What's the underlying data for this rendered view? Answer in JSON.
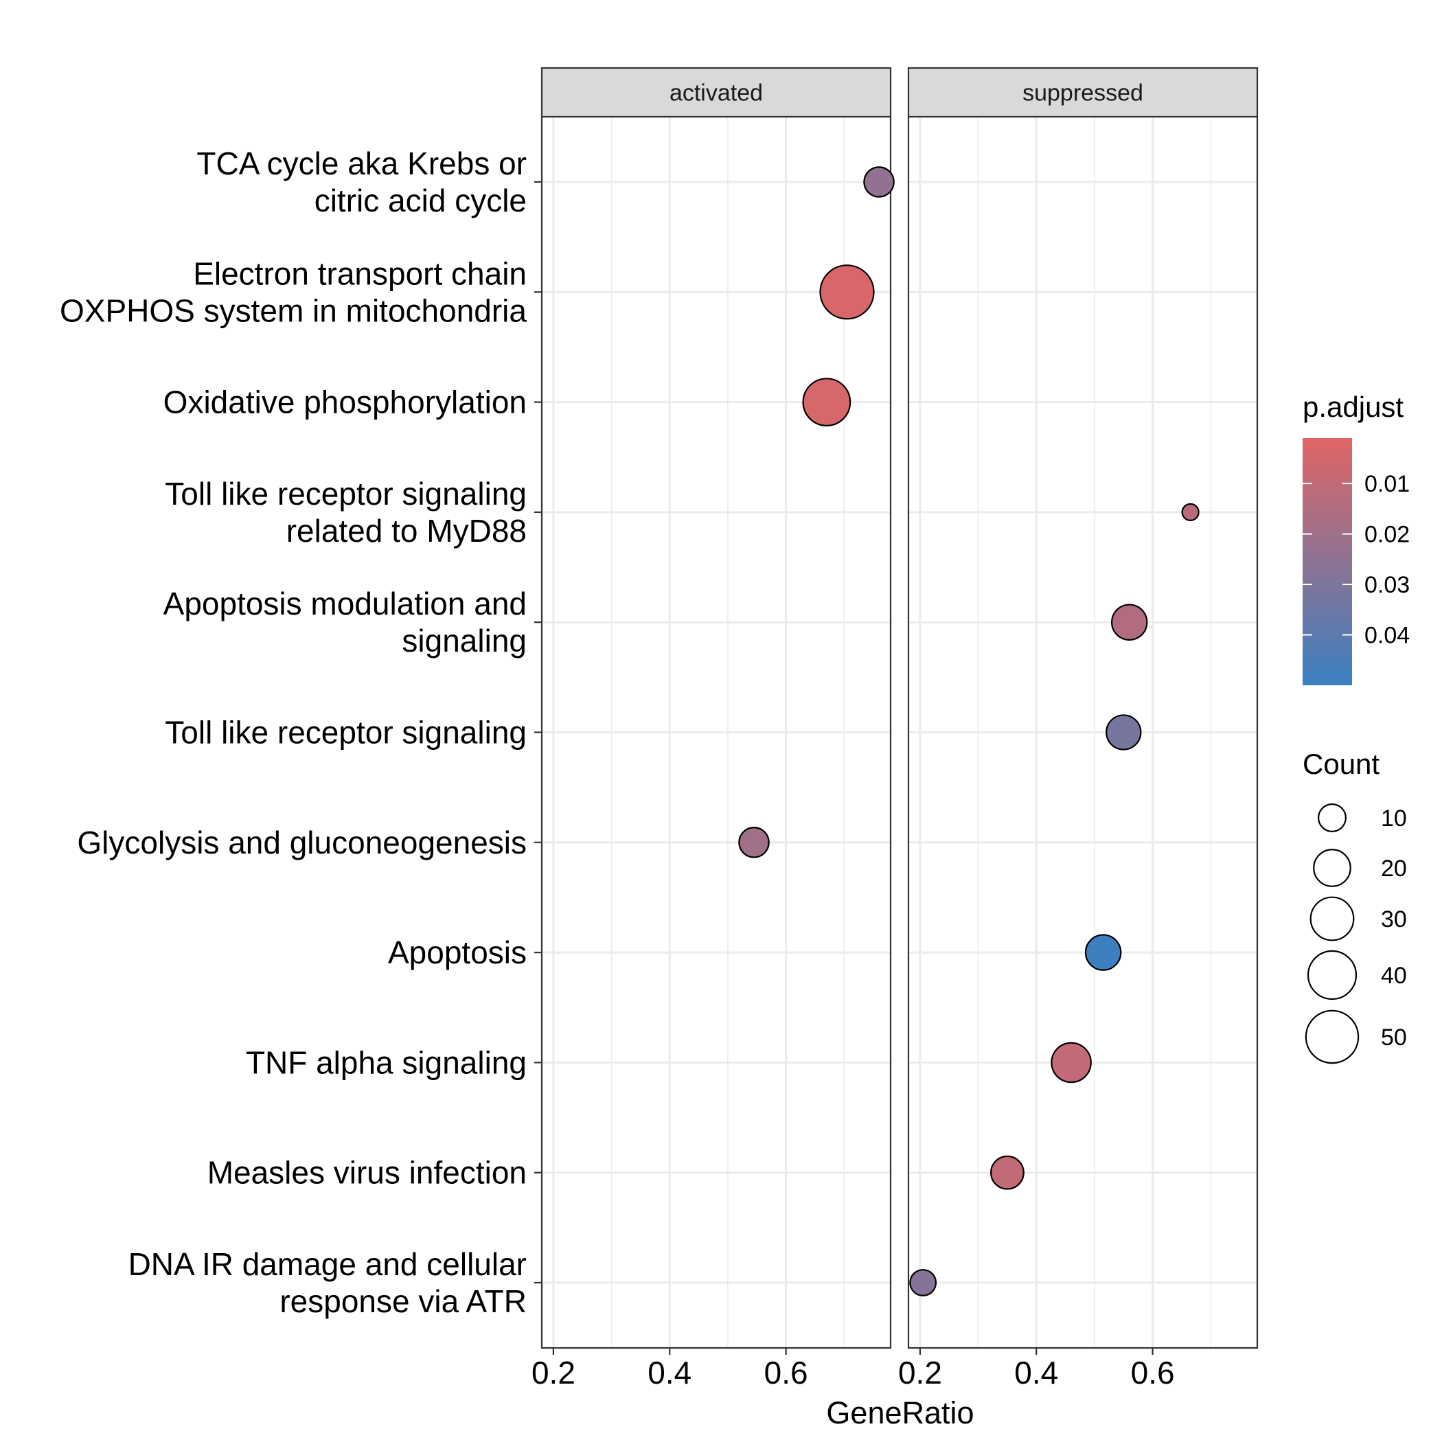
{
  "chart_data": {
    "type": "scatter",
    "subtype": "dot-plot-faceted",
    "xlabel": "GeneRatio",
    "ylabel": "",
    "xlim": [
      0.18,
      0.78
    ],
    "xticks": [
      0.2,
      0.4,
      0.6
    ],
    "xtick_labels": [
      "0.2",
      "0.4",
      "0.6"
    ],
    "grid": true,
    "facets": [
      "activated",
      "suppressed"
    ],
    "categories": [
      "TCA cycle aka Krebs or\ncitric acid cycle ",
      "Electron transport chain\nOXPHOS system in mitochondria",
      "Oxidative phosphorylation",
      "Toll like receptor signaling\nrelated to MyD88",
      "Apoptosis modulation and\nsignaling",
      "Toll like receptor signaling",
      "Glycolysis and gluconeogenesis",
      "Apoptosis",
      "TNF alpha signaling",
      "Measles virus infection",
      "DNA IR damage and cellular\nresponse via ATR"
    ],
    "points": [
      {
        "facet": "activated",
        "category": 0,
        "x": 0.76,
        "count": 12,
        "p_adjust": 0.024
      },
      {
        "facet": "activated",
        "category": 1,
        "x": 0.705,
        "count": 53,
        "p_adjust": 0.003
      },
      {
        "facet": "activated",
        "category": 2,
        "x": 0.67,
        "count": 38,
        "p_adjust": 0.004
      },
      {
        "facet": "activated",
        "category": 6,
        "x": 0.545,
        "count": 12,
        "p_adjust": 0.02
      },
      {
        "facet": "suppressed",
        "category": 3,
        "x": 0.665,
        "count": 6,
        "p_adjust": 0.012
      },
      {
        "facet": "suppressed",
        "category": 4,
        "x": 0.56,
        "count": 18,
        "p_adjust": 0.015
      },
      {
        "facet": "suppressed",
        "category": 5,
        "x": 0.55,
        "count": 17,
        "p_adjust": 0.032
      },
      {
        "facet": "suppressed",
        "category": 7,
        "x": 0.515,
        "count": 18,
        "p_adjust": 0.049
      },
      {
        "facet": "suppressed",
        "category": 8,
        "x": 0.46,
        "count": 24,
        "p_adjust": 0.01
      },
      {
        "facet": "suppressed",
        "category": 9,
        "x": 0.35,
        "count": 15,
        "p_adjust": 0.01
      },
      {
        "facet": "suppressed",
        "category": 10,
        "x": 0.205,
        "count": 9,
        "p_adjust": 0.028
      }
    ],
    "color_legend": {
      "title": "p.adjust",
      "low_color": "#e06565",
      "high_color": "#3a80c0",
      "range": [
        0.001,
        0.05
      ],
      "ticks": [
        0.01,
        0.02,
        0.03,
        0.04
      ],
      "tick_labels": [
        "0.01",
        "0.02",
        "0.03",
        "0.04"
      ]
    },
    "size_legend": {
      "title": "Count",
      "values": [
        10,
        20,
        30,
        40,
        50
      ],
      "labels": [
        "10",
        "20",
        "30",
        "40",
        "50"
      ],
      "range": [
        6,
        53
      ]
    }
  }
}
